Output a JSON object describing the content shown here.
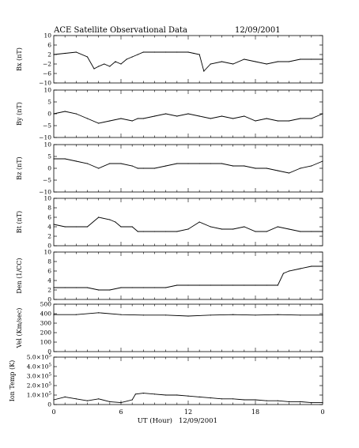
{
  "chart_data": {
    "title": "ACE Satellite Observational Data",
    "date": "12/09/2001",
    "xlabel": "UT (Hour)",
    "xlabel_date": "12/09/2001",
    "x_ticks": [
      "0",
      "6",
      "12",
      "18",
      "0"
    ],
    "xlim": [
      0,
      24
    ],
    "panels": [
      {
        "key": "bx",
        "type": "line",
        "ylabel": "Bx (nT)",
        "ylim": [
          -10,
          10
        ],
        "y_ticks": [
          10,
          6,
          2,
          -2,
          -6,
          -10
        ],
        "y_tick_labels": [
          "10",
          "6",
          "2",
          "−2",
          "−6",
          "−10"
        ],
        "x": [
          0,
          1,
          2,
          3,
          3.6,
          4,
          4.5,
          5,
          5.5,
          6,
          6.5,
          7,
          7.5,
          8,
          9,
          10,
          11,
          12,
          12.5,
          13,
          13.4,
          14,
          15,
          16,
          17,
          18,
          19,
          20,
          21,
          22,
          23,
          24
        ],
        "y": [
          2,
          2.5,
          3,
          1,
          -4,
          -3,
          -2,
          -3,
          -1,
          -2,
          0,
          1,
          2,
          3,
          3,
          3,
          3,
          3,
          2.5,
          2,
          -5,
          -2,
          -1,
          -2,
          0,
          -1,
          -2,
          -1,
          -1,
          0,
          0,
          0
        ]
      },
      {
        "key": "by",
        "type": "line",
        "ylabel": "By (nT)",
        "ylim": [
          -10,
          10
        ],
        "y_ticks": [
          10,
          5,
          0,
          -5,
          -10
        ],
        "y_tick_labels": [
          "10",
          "5",
          "0",
          "−5",
          "−10"
        ],
        "x": [
          0,
          1,
          2,
          3,
          4,
          5,
          6,
          7,
          7.5,
          8,
          9,
          10,
          11,
          12,
          13,
          14,
          15,
          16,
          17,
          18,
          19,
          20,
          21,
          22,
          23,
          24
        ],
        "y": [
          0,
          1,
          0,
          -2,
          -4,
          -3,
          -2,
          -3,
          -2,
          -2,
          -1,
          0,
          -1,
          0,
          -1,
          -2,
          -1,
          -2,
          -1,
          -3,
          -2,
          -3,
          -3,
          -2,
          -2,
          0
        ]
      },
      {
        "key": "bz",
        "type": "line",
        "ylabel": "Bz (nT)",
        "ylim": [
          -10,
          10
        ],
        "y_ticks": [
          10,
          5,
          0,
          -5,
          -10
        ],
        "y_tick_labels": [
          "10",
          "5",
          "0",
          "−5",
          "−10"
        ],
        "x": [
          0,
          1,
          2,
          3,
          4,
          5,
          6,
          7,
          7.5,
          8,
          9,
          10,
          11,
          12,
          13,
          14,
          15,
          16,
          17,
          18,
          19,
          20,
          21,
          22,
          23,
          24
        ],
        "y": [
          4,
          4,
          3,
          2,
          0,
          2,
          2,
          1,
          0,
          0,
          0,
          1,
          2,
          2,
          2,
          2,
          2,
          1,
          1,
          0,
          0,
          -1,
          -2,
          0,
          1,
          3
        ]
      },
      {
        "key": "bt",
        "type": "line",
        "ylabel": "Bt (nT)",
        "ylim": [
          0,
          10
        ],
        "y_ticks": [
          10,
          8,
          6,
          4,
          2,
          0
        ],
        "y_tick_labels": [
          "10",
          "8",
          "6",
          "4",
          "2",
          "0"
        ],
        "x": [
          0,
          1,
          2,
          3,
          4,
          5,
          5.5,
          6,
          7,
          7.5,
          8,
          9,
          10,
          11,
          12,
          13,
          14,
          15,
          16,
          17,
          18,
          19,
          20,
          21,
          22,
          23,
          24
        ],
        "y": [
          4.5,
          4,
          4,
          4,
          6,
          5.5,
          5,
          4,
          4,
          3,
          3,
          3,
          3,
          3,
          3.5,
          5,
          4,
          3.5,
          3.5,
          4,
          3,
          3,
          4,
          3.5,
          3,
          3,
          3
        ]
      },
      {
        "key": "den",
        "type": "line",
        "ylabel": "Den (1/CC)",
        "ylim": [
          0,
          10
        ],
        "y_ticks": [
          10,
          8,
          6,
          4,
          2,
          0
        ],
        "y_tick_labels": [
          "10",
          "8",
          "6",
          "4",
          "2",
          "0"
        ],
        "x": [
          0,
          1,
          2,
          3,
          4,
          5,
          6,
          7,
          8,
          9,
          10,
          11,
          12,
          13,
          14,
          15,
          16,
          17,
          18,
          19,
          20,
          20.5,
          21,
          22,
          23,
          24
        ],
        "y": [
          2.5,
          2.5,
          2.5,
          2.5,
          2,
          2,
          2.5,
          2.5,
          2.5,
          2.5,
          2.5,
          3,
          3,
          3,
          3,
          3,
          3,
          3,
          3,
          3,
          3,
          5.5,
          6,
          6.5,
          7,
          7
        ]
      },
      {
        "key": "vel",
        "type": "line",
        "ylabel": "Vel (Km/sec)",
        "ylim": [
          0,
          500
        ],
        "y_ticks": [
          500,
          400,
          300,
          200,
          100,
          0
        ],
        "y_tick_labels": [
          "500",
          "400",
          "300",
          "200",
          "100",
          "0"
        ],
        "x": [
          0,
          2,
          4,
          6,
          8,
          10,
          12,
          14,
          16,
          18,
          20,
          22,
          24
        ],
        "y": [
          390,
          390,
          410,
          390,
          385,
          385,
          375,
          385,
          390,
          385,
          390,
          385,
          385
        ]
      },
      {
        "key": "temp",
        "type": "line",
        "ylabel": "Ion Temp (K)",
        "ylim": [
          0,
          500000
        ],
        "y_ticks": [
          500000,
          400000,
          300000,
          200000,
          100000,
          0
        ],
        "y_tick_mantissa": [
          "5.0",
          "4.0",
          "3.0",
          "2.0",
          "1.0",
          "0"
        ],
        "y_tick_exponent": "5",
        "x": [
          0,
          1,
          2,
          3,
          4,
          5,
          6,
          7,
          7.3,
          8,
          9,
          10,
          11,
          12,
          13,
          14,
          15,
          16,
          17,
          18,
          19,
          20,
          21,
          22,
          23,
          24
        ],
        "y": [
          50000,
          80000,
          60000,
          40000,
          60000,
          30000,
          20000,
          50000,
          110000,
          120000,
          110000,
          100000,
          100000,
          90000,
          80000,
          70000,
          60000,
          60000,
          50000,
          50000,
          40000,
          40000,
          30000,
          30000,
          20000,
          20000
        ]
      }
    ]
  }
}
